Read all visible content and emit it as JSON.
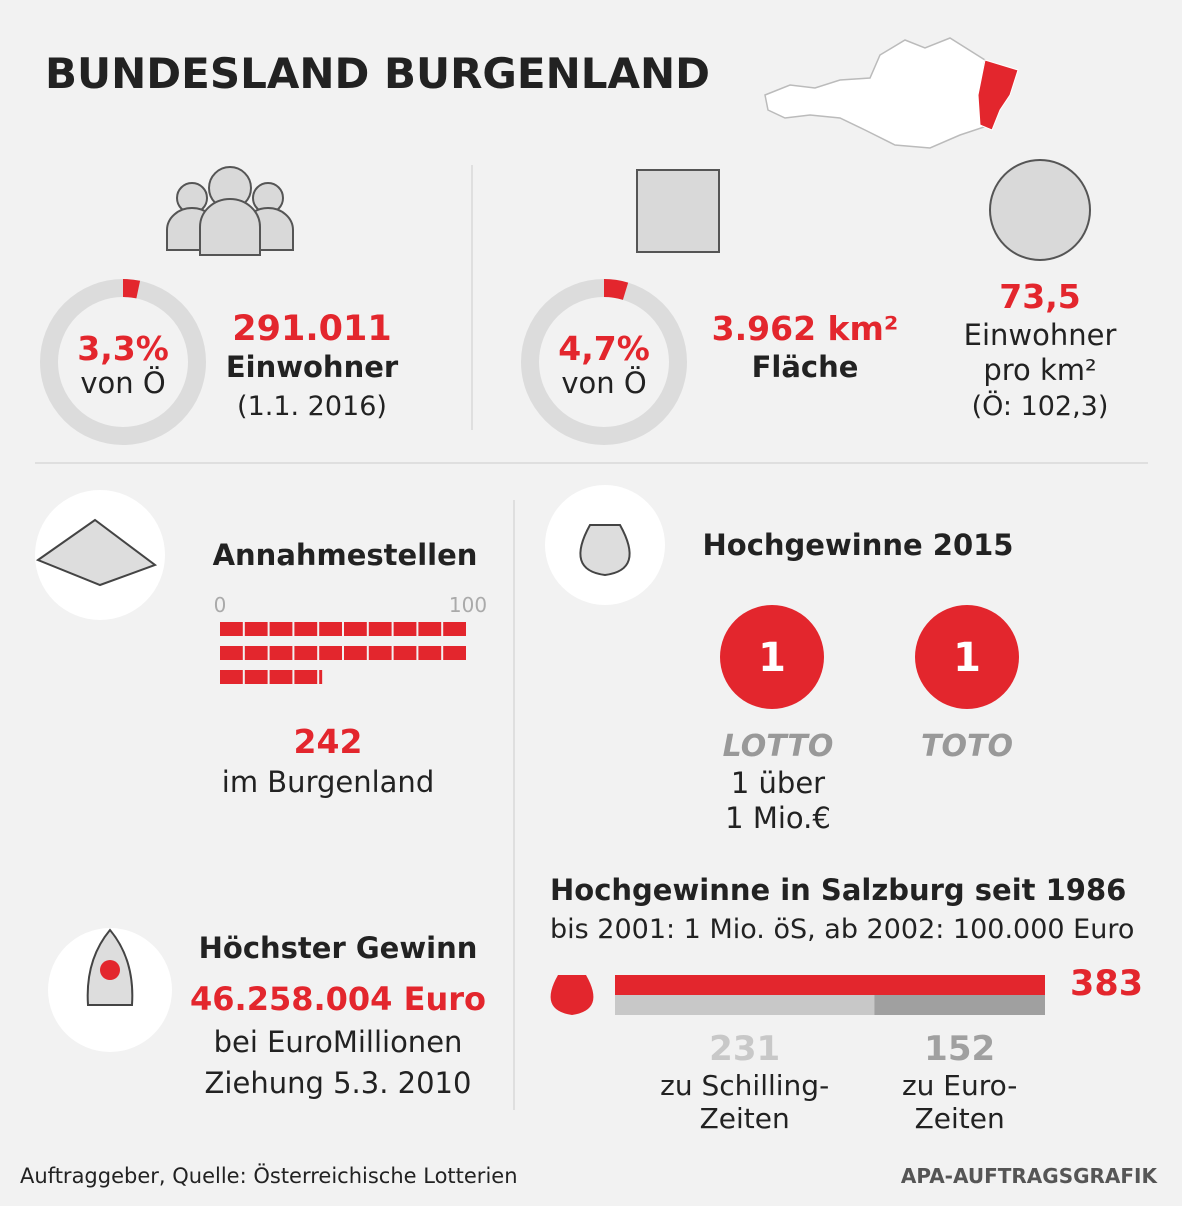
{
  "title": "BUNDESLAND BURGENLAND",
  "population": {
    "share": 3.3,
    "share_label": "3,3%",
    "share_caption": "von Ö",
    "count": "291.011",
    "label": "Einwohner",
    "date": "(1.1. 2016)"
  },
  "area": {
    "share": 4.7,
    "share_label": "4,7%",
    "share_caption": "von Ö",
    "size": "3.962 km²",
    "label": "Fläche"
  },
  "density": {
    "value": "73,5",
    "lines": [
      "Einwohner",
      "pro km²",
      "(Ö: 102,3)"
    ]
  },
  "outlets": {
    "title": "Annahmestellen",
    "value": 242,
    "xlim": [
      0,
      100
    ],
    "xticks": [
      0,
      100
    ],
    "caption": "im Burgenland"
  },
  "jackpots_2015": {
    "title": "Hochgewinne 2015",
    "games": [
      {
        "name": "LOTTO",
        "count": 1
      },
      {
        "name": "TOTO",
        "count": 1
      }
    ],
    "note": [
      "1 über",
      "1 Mio.€"
    ]
  },
  "top_win": {
    "title": "Höchster Gewinn",
    "amount": "46.258.004 Euro",
    "lines": [
      "bei EuroMillionen",
      "Ziehung 5.3. 2010"
    ]
  },
  "salzburg": {
    "title": "Hochgewinne in Salzburg seit 1986",
    "subtitle": "bis 2001: 1 Mio. öS, ab 2002: 100.000 Euro",
    "total": 383,
    "total_color": "#e3262d",
    "parts": [
      {
        "value": 231,
        "label": [
          "zu Schilling-",
          "Zeiten"
        ],
        "color": "#c8c8c8"
      },
      {
        "value": 152,
        "label": [
          "zu Euro-",
          "Zeiten"
        ],
        "color": "#a0a0a0"
      }
    ]
  },
  "footer": {
    "source": "Auftraggeber, Quelle: Österreichische Lotterien",
    "credit": "APA-AUFTRAGSGRAFIK"
  }
}
